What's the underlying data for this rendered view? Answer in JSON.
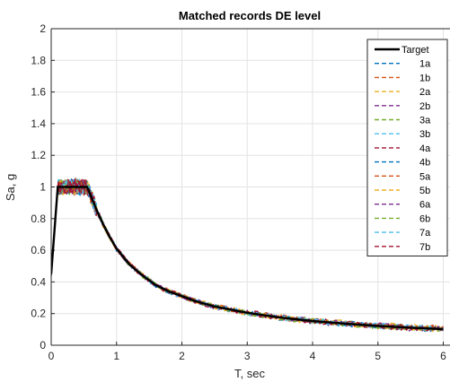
{
  "chart_data": {
    "type": "line",
    "title": "Matched records DE level",
    "xlabel": "T, sec",
    "ylabel": "Sa, g",
    "xlim": [
      0,
      6
    ],
    "ylim": [
      0,
      2
    ],
    "x_ticks": [
      "0",
      "1",
      "2",
      "3",
      "4",
      "5",
      "6"
    ],
    "y_ticks": [
      "0",
      "0.2",
      "0.4",
      "0.6",
      "0.8",
      "1",
      "1.2",
      "1.4",
      "1.6",
      "1.8",
      "2"
    ],
    "grid": true,
    "legend_position": "top-right",
    "target": {
      "name": "Target",
      "color": "#000000",
      "x": [
        0,
        0.1,
        0.2,
        0.3,
        0.4,
        0.5,
        0.55,
        0.6,
        0.7,
        0.8,
        0.9,
        1.0,
        1.2,
        1.4,
        1.6,
        1.8,
        2.0,
        2.2,
        2.5,
        3.0,
        3.5,
        4.0,
        4.5,
        5.0,
        5.5,
        6.0
      ],
      "y": [
        0.45,
        1.0,
        1.0,
        1.0,
        1.0,
        1.0,
        1.0,
        0.95,
        0.85,
        0.76,
        0.68,
        0.61,
        0.51,
        0.44,
        0.38,
        0.34,
        0.31,
        0.28,
        0.245,
        0.205,
        0.175,
        0.153,
        0.136,
        0.122,
        0.111,
        0.102
      ]
    },
    "series": [
      {
        "name": "1a",
        "color": "#0072BD"
      },
      {
        "name": "1b",
        "color": "#D95319"
      },
      {
        "name": "2a",
        "color": "#EDB120"
      },
      {
        "name": "2b",
        "color": "#7E2F8E"
      },
      {
        "name": "3a",
        "color": "#77AC30"
      },
      {
        "name": "3b",
        "color": "#4DBEEE"
      },
      {
        "name": "4a",
        "color": "#A2142F"
      },
      {
        "name": "4b",
        "color": "#0072BD"
      },
      {
        "name": "5a",
        "color": "#D95319"
      },
      {
        "name": "5b",
        "color": "#EDB120"
      },
      {
        "name": "6a",
        "color": "#7E2F8E"
      },
      {
        "name": "6b",
        "color": "#77AC30"
      },
      {
        "name": "7a",
        "color": "#4DBEEE"
      },
      {
        "name": "7b",
        "color": "#A2142F"
      }
    ]
  }
}
